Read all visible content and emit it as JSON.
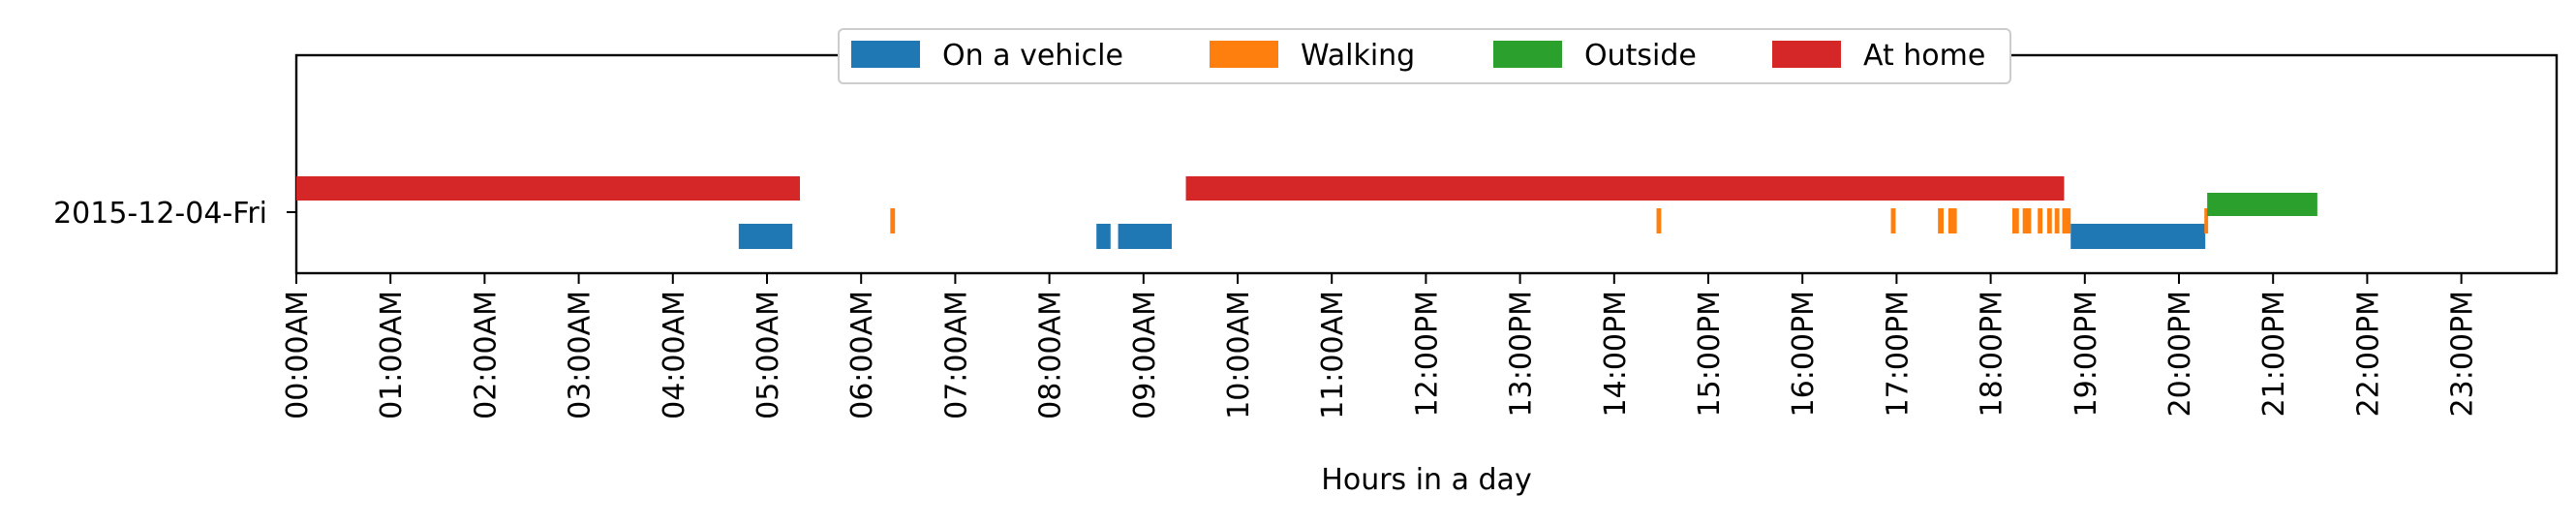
{
  "chart_data": {
    "type": "timeline",
    "xlabel": "Hours in a day",
    "ylabel": "",
    "title": "",
    "xlim": [
      0,
      24
    ],
    "category": "2015-12-04-Fri",
    "x_ticks": [
      {
        "value": 0,
        "label": "00:00AM"
      },
      {
        "value": 1,
        "label": "01:00AM"
      },
      {
        "value": 2,
        "label": "02:00AM"
      },
      {
        "value": 3,
        "label": "03:00AM"
      },
      {
        "value": 4,
        "label": "04:00AM"
      },
      {
        "value": 5,
        "label": "05:00AM"
      },
      {
        "value": 6,
        "label": "06:00AM"
      },
      {
        "value": 7,
        "label": "07:00AM"
      },
      {
        "value": 8,
        "label": "08:00AM"
      },
      {
        "value": 9,
        "label": "09:00AM"
      },
      {
        "value": 10,
        "label": "10:00AM"
      },
      {
        "value": 11,
        "label": "11:00AM"
      },
      {
        "value": 12,
        "label": "12:00PM"
      },
      {
        "value": 13,
        "label": "13:00PM"
      },
      {
        "value": 14,
        "label": "14:00PM"
      },
      {
        "value": 15,
        "label": "15:00PM"
      },
      {
        "value": 16,
        "label": "16:00PM"
      },
      {
        "value": 17,
        "label": "17:00PM"
      },
      {
        "value": 18,
        "label": "18:00PM"
      },
      {
        "value": 19,
        "label": "19:00PM"
      },
      {
        "value": 20,
        "label": "20:00PM"
      },
      {
        "value": 21,
        "label": "21:00PM"
      },
      {
        "value": 22,
        "label": "22:00PM"
      },
      {
        "value": 23,
        "label": "23:00PM"
      }
    ],
    "legend": {
      "placement": "upper-center"
    },
    "series": [
      {
        "name": "On a vehicle",
        "color": "#1f77b4",
        "intervals": [
          {
            "start": 4.7,
            "end": 5.27
          },
          {
            "start": 8.5,
            "end": 8.65
          },
          {
            "start": 8.73,
            "end": 9.3
          },
          {
            "start": 18.85,
            "end": 20.28
          }
        ]
      },
      {
        "name": "Walking",
        "color": "#ff7f0e",
        "intervals": [
          {
            "start": 6.31,
            "end": 6.36
          },
          {
            "start": 14.45,
            "end": 14.5
          },
          {
            "start": 16.94,
            "end": 16.99
          },
          {
            "start": 17.44,
            "end": 17.5
          },
          {
            "start": 17.55,
            "end": 17.64
          },
          {
            "start": 18.23,
            "end": 18.3
          },
          {
            "start": 18.34,
            "end": 18.43
          },
          {
            "start": 18.5,
            "end": 18.55
          },
          {
            "start": 18.6,
            "end": 18.65
          },
          {
            "start": 18.68,
            "end": 18.73
          },
          {
            "start": 18.76,
            "end": 18.85
          },
          {
            "start": 20.27,
            "end": 20.31
          }
        ]
      },
      {
        "name": "Outside",
        "color": "#2ca02c",
        "intervals": [
          {
            "start": 20.3,
            "end": 21.47
          }
        ]
      },
      {
        "name": "At home",
        "color": "#d62728",
        "intervals": [
          {
            "start": 0.0,
            "end": 5.35
          },
          {
            "start": 9.45,
            "end": 18.78
          }
        ]
      }
    ]
  }
}
